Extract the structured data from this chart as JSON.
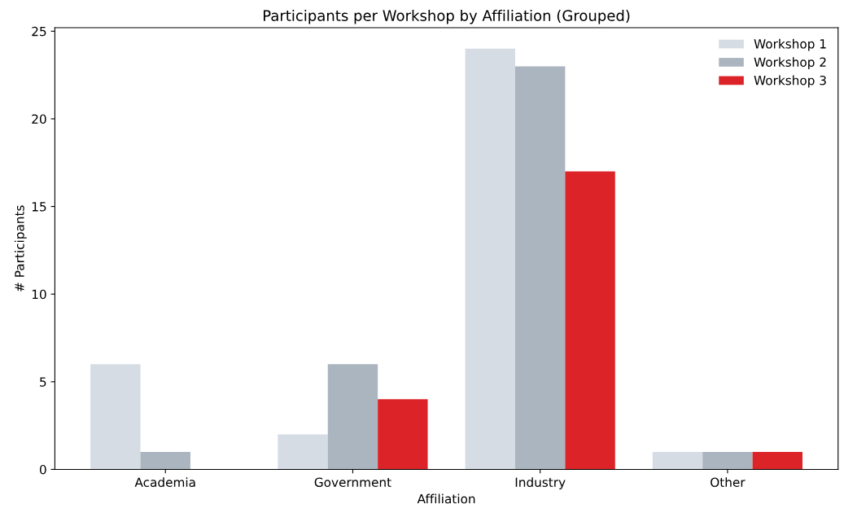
{
  "chart_data": {
    "type": "bar",
    "title": "Participants per Workshop by Affiliation (Grouped)",
    "xlabel": "Affiliation",
    "ylabel": "# Participants",
    "categories": [
      "Academia",
      "Government",
      "Industry",
      "Other"
    ],
    "series": [
      {
        "name": "Workshop 1",
        "color": "#d5dce4",
        "values": [
          6,
          2,
          24,
          1
        ]
      },
      {
        "name": "Workshop 2",
        "color": "#abb5bf",
        "values": [
          1,
          6,
          23,
          1
        ]
      },
      {
        "name": "Workshop 3",
        "color": "#dc2328",
        "values": [
          0,
          4,
          17,
          1
        ]
      }
    ],
    "ylim": [
      0,
      25.2
    ],
    "yticks": [
      0,
      5,
      10,
      15,
      20,
      25
    ],
    "grid": false,
    "legend": "top right"
  }
}
